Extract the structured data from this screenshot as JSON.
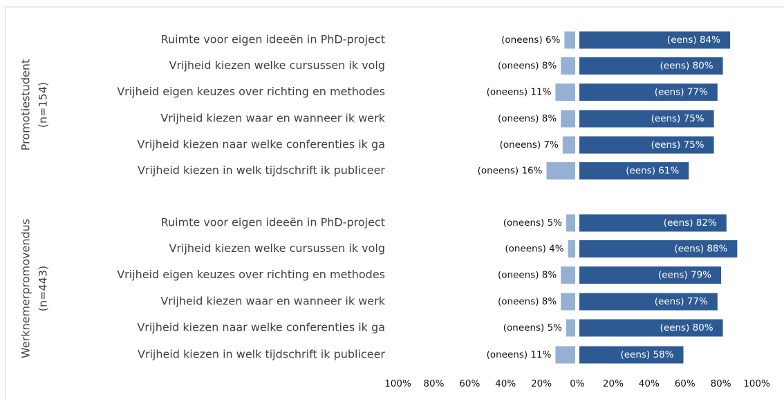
{
  "chart_data": {
    "type": "diverging-bar",
    "groups": [
      {
        "name": "Promotiestudent",
        "n": "(n=154)"
      },
      {
        "name": "Werknemerpromovendus",
        "n": "(n=443)"
      }
    ],
    "categories": [
      "Ruimte voor eigen ideeën in PhD-project",
      "Vrijheid kiezen welke cursussen ik volg",
      "Vrijheid eigen keuzes over richting en methodes",
      "Vrijheid kiezen waar en wanneer ik werk",
      "Vrijheid kiezen naar welke conferenties ik ga",
      "Vrijheid kiezen in welk tijdschrift ik publiceer",
      "Ruimte voor eigen ideeën in PhD-project",
      "Vrijheid kiezen welke cursussen ik volg",
      "Vrijheid eigen keuzes over richting en methodes",
      "Vrijheid kiezen waar en wanneer ik werk",
      "Vrijheid kiezen naar welke conferenties ik ga",
      "Vrijheid kiezen in welk tijdschrift ik publiceer"
    ],
    "series": [
      {
        "color": "#95b0d3",
        "values": [
          -6,
          -8,
          -11,
          -8,
          -7,
          -16,
          -5,
          -4,
          -8,
          -8,
          -5,
          -11
        ],
        "value_labels": [
          "(oneens) 6%",
          "(oneens) 8%",
          "(oneens) 11%",
          "(oneens) 8%",
          "(oneens) 7%",
          "(oneens) 16%",
          "(oneens) 5%",
          "(oneens) 4%",
          "(oneens) 8%",
          "(oneens) 8%",
          "(oneens) 5%",
          "(oneens) 11%"
        ]
      },
      {
        "color": "#2e5a94",
        "values": [
          84,
          80,
          77,
          75,
          75,
          61,
          82,
          88,
          79,
          77,
          80,
          58
        ],
        "value_labels": [
          "(eens) 84%",
          "(eens) 80%",
          "(eens) 77%",
          "(eens) 75%",
          "(eens) 75%",
          "(eens) 61%",
          "(eens) 82%",
          "(eens) 88%",
          "(eens) 79%",
          "(eens) 77%",
          "(eens) 80%",
          "(eens) 58%"
        ]
      }
    ],
    "xlim": [
      -100,
      100
    ],
    "xticks": [
      {
        "value": -100,
        "label": "100%"
      },
      {
        "value": -80,
        "label": "80%"
      },
      {
        "value": -60,
        "label": "60%"
      },
      {
        "value": -40,
        "label": "40%"
      },
      {
        "value": -20,
        "label": "20%"
      },
      {
        "value": 0,
        "label": "0%"
      },
      {
        "value": 20,
        "label": "20%"
      },
      {
        "value": 40,
        "label": "40%"
      },
      {
        "value": 60,
        "label": "60%"
      },
      {
        "value": 80,
        "label": "80%"
      },
      {
        "value": 100,
        "label": "100%"
      }
    ]
  }
}
